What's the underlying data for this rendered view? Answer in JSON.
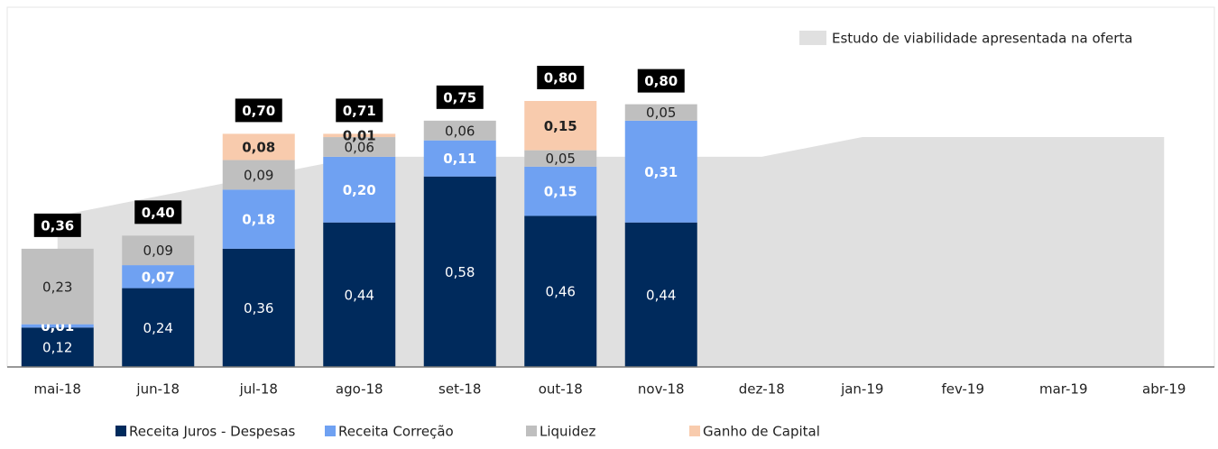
{
  "chart_data": {
    "type": "stacked-bar",
    "categories": [
      "mai-18",
      "jun-18",
      "jul-18",
      "ago-18",
      "set-18",
      "out-18",
      "nov-18",
      "dez-18",
      "jan-19",
      "fev-19",
      "mar-19",
      "abr-19"
    ],
    "series": [
      {
        "name": "Receita Juros - Despesas",
        "color": "#002a5c",
        "values": [
          0.12,
          0.24,
          0.36,
          0.44,
          0.58,
          0.46,
          0.44,
          null,
          null,
          null,
          null,
          null
        ],
        "value_labels": [
          "0,12",
          "0,24",
          "0,36",
          "0,44",
          "0,58",
          "0,46",
          "0,44",
          null,
          null,
          null,
          null,
          null
        ]
      },
      {
        "name": "Receita Correção",
        "color": "#6fa1f2",
        "values": [
          0.01,
          0.07,
          0.18,
          0.2,
          0.11,
          0.15,
          0.31,
          null,
          null,
          null,
          null,
          null
        ],
        "value_labels": [
          "0,01",
          "0,07",
          "0,18",
          "0,20",
          "0,11",
          "0,15",
          "0,31",
          null,
          null,
          null,
          null,
          null
        ]
      },
      {
        "name": "Liquidez",
        "color": "#bfbfbf",
        "values": [
          0.23,
          0.09,
          0.09,
          0.06,
          0.06,
          0.05,
          0.05,
          null,
          null,
          null,
          null,
          null
        ],
        "value_labels": [
          "0,23",
          "0,09",
          "0,09",
          "0,06",
          "0,06",
          "0,05",
          "0,05",
          null,
          null,
          null,
          null,
          null
        ]
      },
      {
        "name": "Ganho de Capital",
        "color": "#f8cbad",
        "values": [
          null,
          null,
          0.08,
          0.01,
          null,
          0.15,
          null,
          null,
          null,
          null,
          null,
          null
        ],
        "value_labels": [
          null,
          null,
          "0,08",
          "0,01",
          null,
          "0,15",
          null,
          null,
          null,
          null,
          null,
          null
        ]
      }
    ],
    "totals": {
      "values": [
        0.36,
        0.4,
        0.7,
        0.71,
        0.75,
        0.8,
        0.8,
        null,
        null,
        null,
        null,
        null
      ],
      "value_labels": [
        "0,36",
        "0,40",
        "0,70",
        "0,71",
        "0,75",
        "0,80",
        "0,80",
        null,
        null,
        null,
        null,
        null
      ]
    },
    "area": {
      "name": "Estudo de viabilidade apresentada na oferta",
      "color": "#e0e0e0",
      "values": [
        0.46,
        0.52,
        0.58,
        0.64,
        0.64,
        0.64,
        0.64,
        0.64,
        0.7,
        0.7,
        0.7,
        0.7
      ]
    },
    "ylim": [
      0,
      1.09
    ]
  }
}
